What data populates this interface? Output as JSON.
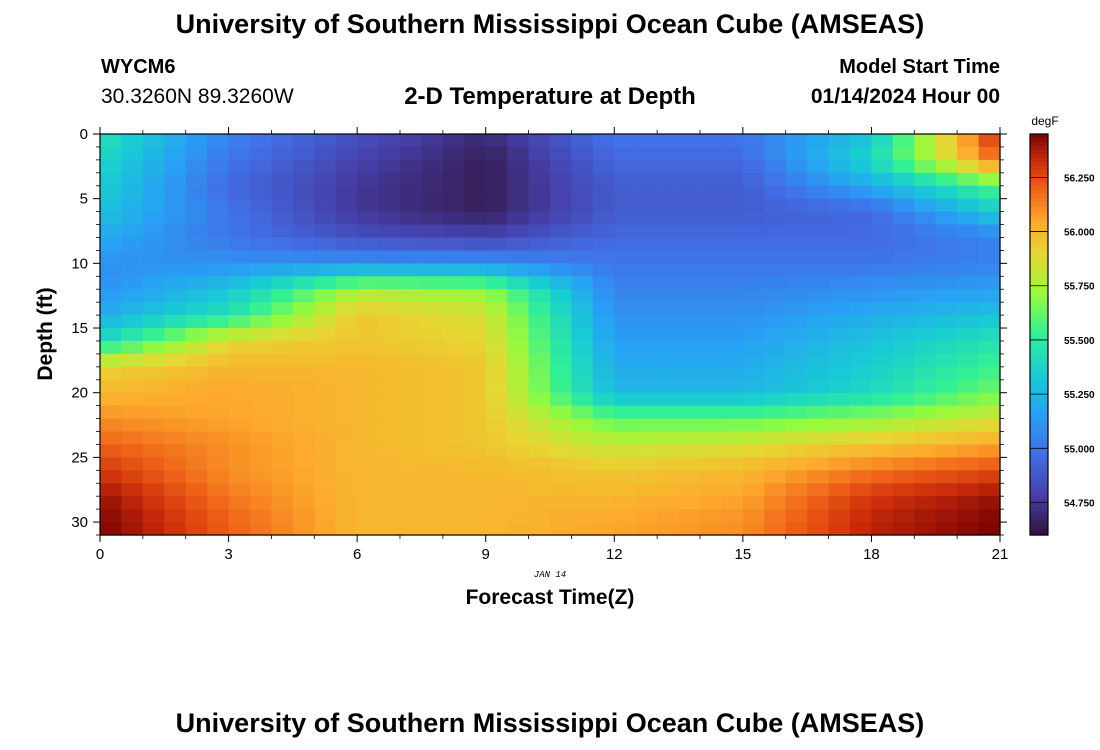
{
  "page": {
    "title": "University of Southern Mississippi Ocean Cube (AMSEAS)",
    "footer_title": "University of Southern Mississippi Ocean Cube (AMSEAS)",
    "station": {
      "id": "WYCM6",
      "coords": "30.3260N  89.3260W"
    },
    "subtitle": "2-D Temperature at Depth",
    "model_start": {
      "label": "Model Start Time",
      "value": "01/14/2024 Hour 00"
    }
  },
  "chart_data": {
    "type": "heatmap",
    "title": "2-D Temperature at Depth",
    "xlabel": "Forecast Time(Z)",
    "ylabel": "Depth (ft)",
    "x_annotation": "JAN 14",
    "xlim": [
      0,
      21
    ],
    "ylim": [
      0,
      31
    ],
    "x_ticks": [
      0,
      3,
      6,
      9,
      12,
      15,
      18,
      21
    ],
    "y_ticks": [
      0,
      5,
      10,
      15,
      20,
      25,
      30
    ],
    "colorbar": {
      "unit": "degF",
      "min": 54.6,
      "max": 56.45,
      "ticks": [
        "54.750",
        "55.000",
        "55.250",
        "55.500",
        "55.750",
        "56.000",
        "56.250"
      ],
      "tick_values": [
        54.75,
        55.0,
        55.25,
        55.5,
        55.75,
        56.0,
        56.25
      ]
    },
    "time_hours": [
      0,
      3,
      6,
      9,
      12,
      15,
      18,
      21
    ],
    "depth_ft": [
      0,
      2,
      4,
      6,
      8,
      10,
      12,
      14,
      16,
      18,
      20,
      22,
      24,
      26,
      28,
      30
    ],
    "values_degF": [
      [
        55.45,
        55.05,
        54.85,
        54.7,
        55.0,
        55.0,
        55.3,
        56.35
      ],
      [
        55.4,
        55.0,
        54.8,
        54.65,
        54.95,
        54.95,
        55.4,
        56.2
      ],
      [
        55.35,
        54.95,
        54.75,
        54.65,
        54.9,
        54.9,
        55.2,
        55.6
      ],
      [
        55.3,
        55.0,
        54.75,
        54.65,
        54.9,
        54.9,
        54.95,
        55.35
      ],
      [
        55.2,
        55.0,
        54.85,
        54.8,
        54.95,
        54.95,
        54.95,
        55.05
      ],
      [
        55.1,
        55.1,
        55.1,
        55.1,
        55.0,
        55.0,
        55.0,
        55.05
      ],
      [
        55.1,
        55.3,
        55.75,
        55.7,
        55.05,
        55.05,
        55.1,
        55.15
      ],
      [
        55.2,
        55.45,
        55.95,
        55.85,
        55.1,
        55.1,
        55.2,
        55.3
      ],
      [
        55.4,
        55.9,
        55.95,
        55.9,
        55.15,
        55.15,
        55.3,
        55.45
      ],
      [
        55.9,
        56.0,
        56.0,
        55.95,
        55.2,
        55.2,
        55.35,
        55.55
      ],
      [
        56.0,
        56.05,
        56.0,
        55.95,
        55.25,
        55.25,
        55.4,
        55.65
      ],
      [
        56.1,
        56.05,
        56.0,
        55.95,
        55.6,
        55.6,
        55.7,
        55.85
      ],
      [
        56.2,
        56.1,
        56.0,
        55.95,
        55.8,
        55.85,
        55.95,
        56.05
      ],
      [
        56.3,
        56.1,
        56.0,
        56.0,
        55.95,
        56.0,
        56.15,
        56.25
      ],
      [
        56.4,
        56.15,
        56.0,
        56.0,
        56.0,
        56.05,
        56.3,
        56.4
      ],
      [
        56.45,
        56.2,
        56.0,
        56.0,
        56.05,
        56.1,
        56.35,
        56.45
      ]
    ]
  }
}
